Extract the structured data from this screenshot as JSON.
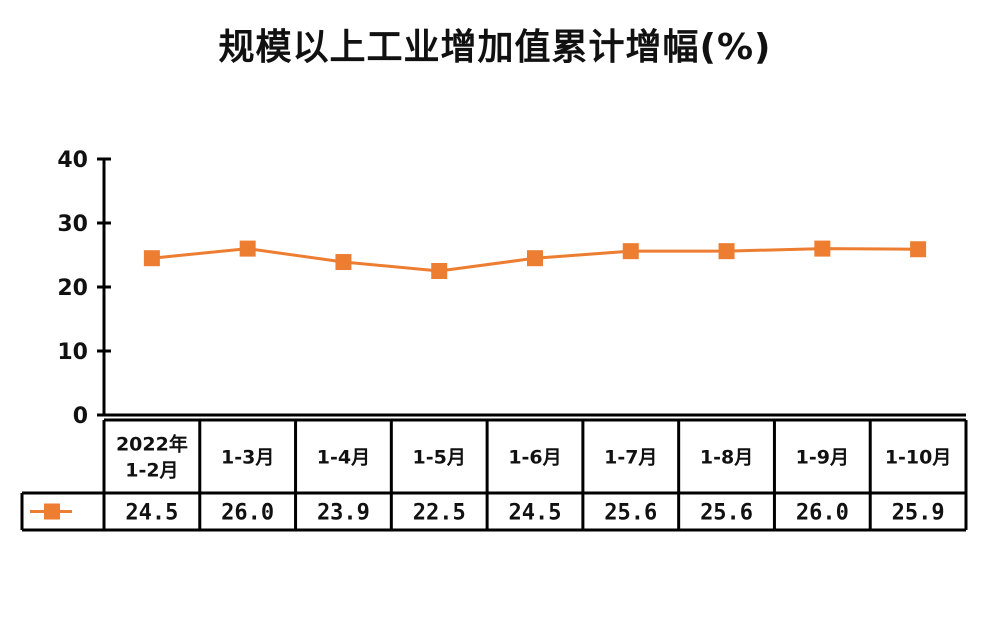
{
  "chart_data": {
    "type": "line",
    "title": "规模以上工业增加值累计增幅(%)",
    "categories": [
      [
        "2022年",
        "1-2月"
      ],
      [
        "1-3月"
      ],
      [
        "1-4月"
      ],
      [
        "1-5月"
      ],
      [
        "1-6月"
      ],
      [
        "1-7月"
      ],
      [
        "1-8月"
      ],
      [
        "1-9月"
      ],
      [
        "1-10月"
      ]
    ],
    "series": [
      {
        "values": [
          24.5,
          26.0,
          23.9,
          22.5,
          24.5,
          25.6,
          25.6,
          26.0,
          25.9
        ],
        "labels": [
          "24.5",
          "26.0",
          "23.9",
          "22.5",
          "24.5",
          "25.6",
          "25.6",
          "26.0",
          "25.9"
        ],
        "color": "#ED7D31",
        "marker": "square"
      }
    ],
    "ylim": [
      0,
      40
    ],
    "yticks": [
      "0",
      "10",
      "20",
      "30",
      "40"
    ],
    "grid": false,
    "legend": "data-table"
  }
}
